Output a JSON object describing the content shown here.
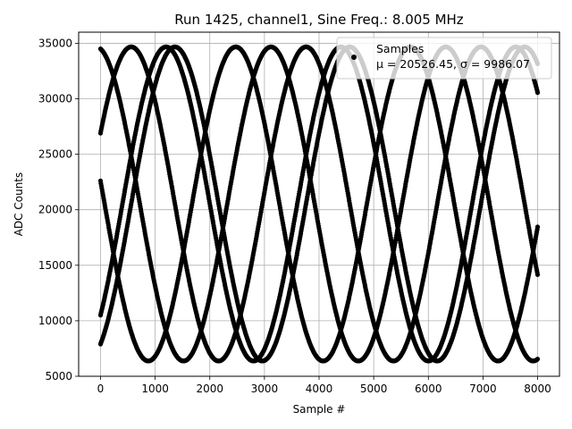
{
  "chart_data": {
    "type": "scatter",
    "title": "Run 1425, channel1, Sine Freq.: 8.005 MHz",
    "xlabel": "Sample #",
    "ylabel": "ADC Counts",
    "xlim": [
      -400,
      8400
    ],
    "ylim": [
      5000,
      36000
    ],
    "xticks": [
      0,
      1000,
      2000,
      3000,
      4000,
      5000,
      6000,
      7000,
      8000
    ],
    "yticks": [
      5000,
      10000,
      15000,
      20000,
      25000,
      30000,
      35000
    ],
    "grid": true,
    "legend": {
      "placement": "top-right",
      "entries": [
        {
          "name": "Samples",
          "stats": "μ = 20526.45, σ = 9986.07",
          "marker": "dot"
        }
      ]
    },
    "series": [
      {
        "name": "Samples",
        "color": "#000000",
        "description_mu": 20526.45,
        "description_sigma": 9986.07,
        "sinusoid": {
          "offset": 20526.45,
          "amplitude": 14150,
          "period_samples": 3200
        },
        "phases_at_x0": [
          34500,
          26900,
          22600,
          10500,
          7900
        ],
        "x_range": [
          0,
          8000
        ]
      }
    ]
  }
}
